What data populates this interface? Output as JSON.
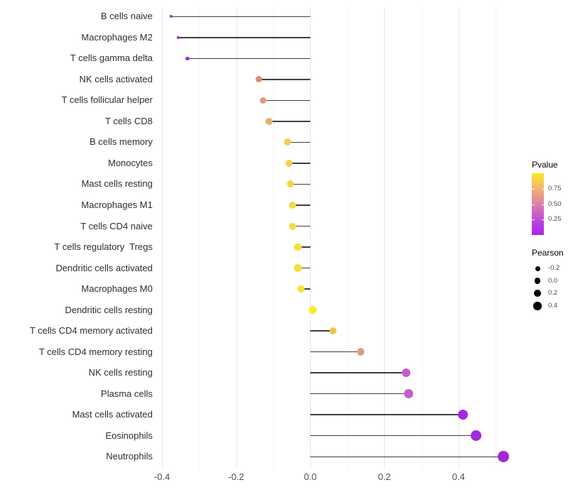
{
  "chart_data": {
    "type": "lollipop",
    "title": "",
    "xlabel": "",
    "ylabel": "",
    "xlim": [
      -0.45,
      0.56
    ],
    "grid": true,
    "x_ticks": [
      -0.4,
      -0.2,
      0.0,
      0.2,
      0.4
    ],
    "x_tick_labels": [
      "-0.4",
      "-0.2",
      "0.0",
      "0.2",
      "0.4"
    ],
    "x_minor_ticks": [
      -0.3,
      -0.1,
      0.1,
      0.3,
      0.5
    ],
    "rows": [
      {
        "label": "B cells naive",
        "pearson": -0.375,
        "dot_color": "#9c2fd0",
        "dot_size": 4
      },
      {
        "label": "Macrophages M2",
        "pearson": -0.356,
        "dot_color": "#9f2ed1",
        "dot_size": 4.5
      },
      {
        "label": "T cells gamma delta",
        "pearson": -0.331,
        "dot_color": "#a530d3",
        "dot_size": 5.5
      },
      {
        "label": "NK cells activated",
        "pearson": -0.138,
        "dot_color": "#de8d72",
        "dot_size": 9
      },
      {
        "label": "T cells follicular helper",
        "pearson": -0.128,
        "dot_color": "#e29a76",
        "dot_size": 9
      },
      {
        "label": "T cells CD8",
        "pearson": -0.111,
        "dot_color": "#e9b16d",
        "dot_size": 9.5
      },
      {
        "label": "B cells memory",
        "pearson": -0.061,
        "dot_color": "#f2cc55",
        "dot_size": 10
      },
      {
        "label": "Monocytes",
        "pearson": -0.058,
        "dot_color": "#f5d24c",
        "dot_size": 10
      },
      {
        "label": "Mast cells resting",
        "pearson": -0.053,
        "dot_color": "#f5d44a",
        "dot_size": 10
      },
      {
        "label": "Macrophages M1",
        "pearson": -0.047,
        "dot_color": "#f7d943",
        "dot_size": 10
      },
      {
        "label": "T cells CD4 naive",
        "pearson": -0.047,
        "dot_color": "#f7d943",
        "dot_size": 10
      },
      {
        "label": "T cells regulatory  Tregs",
        "pearson": -0.034,
        "dot_color": "#f9de39",
        "dot_size": 10.5
      },
      {
        "label": "Dendritic cells activated",
        "pearson": -0.034,
        "dot_color": "#f9de39",
        "dot_size": 10.5
      },
      {
        "label": "Macrophages M0",
        "pearson": -0.025,
        "dot_color": "#fae233",
        "dot_size": 10.5
      },
      {
        "label": "Dendritic cells resting",
        "pearson": 0.006,
        "dot_color": "#fdea24",
        "dot_size": 11
      },
      {
        "label": "T cells CD4 memory activated",
        "pearson": 0.061,
        "dot_color": "#eec44f",
        "dot_size": 10.5
      },
      {
        "label": "T cells CD4 memory resting",
        "pearson": 0.136,
        "dot_color": "#e49a81",
        "dot_size": 10.5
      },
      {
        "label": "NK cells resting",
        "pearson": 0.259,
        "dot_color": "#c55ec4",
        "dot_size": 12.5
      },
      {
        "label": "Plasma cells",
        "pearson": 0.266,
        "dot_color": "#c65fc9",
        "dot_size": 13
      },
      {
        "label": "Mast cells activated",
        "pearson": 0.412,
        "dot_color": "#a02be0",
        "dot_size": 14.5
      },
      {
        "label": "Eosinophils",
        "pearson": 0.448,
        "dot_color": "#9f2cdd",
        "dot_size": 15
      },
      {
        "label": "Neutrophils",
        "pearson": 0.521,
        "dot_color": "#a228d6",
        "dot_size": 16
      }
    ],
    "legend_pvalue": {
      "title": "Pvalue",
      "range": [
        0,
        1
      ],
      "ticks": [
        {
          "value": 0.75,
          "label": "0.75"
        },
        {
          "value": 0.5,
          "label": "0.50"
        },
        {
          "value": 0.25,
          "label": "0.25"
        }
      ],
      "gradient_top_to_bottom": [
        "#fbe723",
        "#f7c45f",
        "#eda083",
        "#dc81ab",
        "#c75dcc",
        "#b23ce0",
        "#a825ea"
      ]
    },
    "legend_pearson": {
      "title": "Pearson",
      "dot_color": "#000000",
      "items": [
        {
          "label": "-0.2",
          "size": 7
        },
        {
          "label": "0.0",
          "size": 8.5
        },
        {
          "label": "0.2",
          "size": 10
        },
        {
          "label": "0.4",
          "size": 11.5
        }
      ]
    },
    "colors": {
      "background": "#ffffff",
      "stem": "#3f3f3f",
      "grid_major": "#e7e7e7",
      "grid_minor": "#f3f3f3",
      "axis_text": "#4d4d4d",
      "label_text": "#2e2e2e"
    }
  }
}
